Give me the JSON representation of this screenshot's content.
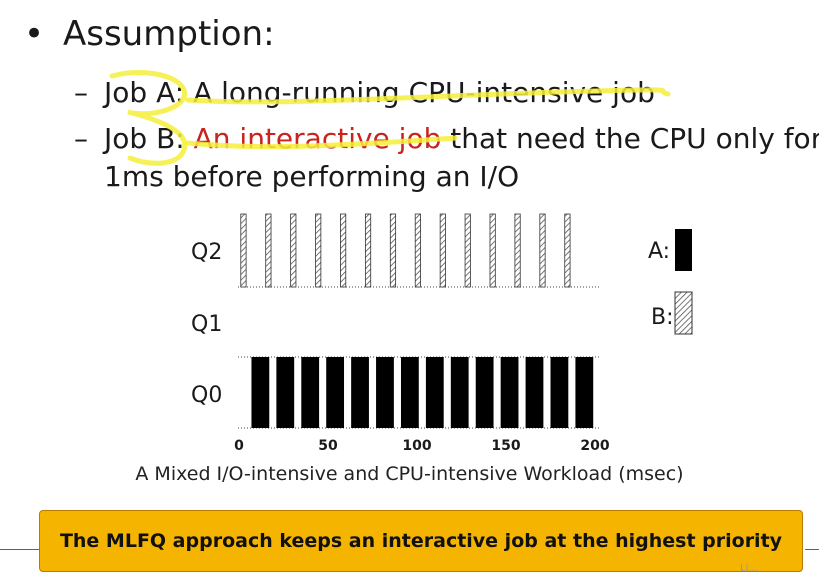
{
  "slide": {
    "heading": "Assumption:",
    "bullets": [
      {
        "dash": "–",
        "label": "Job A:",
        "text": " A long-running CPU-intensive job"
      },
      {
        "dash": "–",
        "label": "Job B:",
        "highlight": " An interactive job",
        "text": " that need the CPU only for",
        "line2": "1ms before performing an I/O"
      }
    ]
  },
  "diagram": {
    "queues": [
      "Q2",
      "Q1",
      "Q0"
    ],
    "legend": [
      {
        "label": "A:",
        "style": "solid",
        "color": "#000000"
      },
      {
        "label": "B:",
        "style": "hatched",
        "color": "#555555"
      }
    ],
    "x_ticks": [
      "0",
      "50",
      "100",
      "150",
      "200"
    ],
    "caption": "A Mixed I/O-intensive and CPU-intensive Workload (msec)",
    "jobA_color": "#000000",
    "jobB_hatch_color": "#555555"
  },
  "chart_data": {
    "type": "bar",
    "xlabel": "A Mixed I/O-intensive and CPU-intensive Workload (msec)",
    "xlim": [
      0,
      200
    ],
    "x_ticks": [
      0,
      50,
      100,
      150,
      200
    ],
    "rows": [
      "Q2",
      "Q1",
      "Q0"
    ],
    "series": [
      {
        "name": "A",
        "queue": "Q0",
        "segments": [
          [
            7,
            17
          ],
          [
            21,
            31
          ],
          [
            35,
            45
          ],
          [
            49,
            59
          ],
          [
            63,
            73
          ],
          [
            77,
            87
          ],
          [
            91,
            101
          ],
          [
            105,
            115
          ],
          [
            119,
            129
          ],
          [
            133,
            143
          ],
          [
            147,
            157
          ],
          [
            161,
            171
          ],
          [
            175,
            185
          ],
          [
            189,
            199
          ]
        ]
      },
      {
        "name": "B",
        "queue": "Q2",
        "segments": [
          [
            1,
            4
          ],
          [
            15,
            18
          ],
          [
            29,
            32
          ],
          [
            43,
            46
          ],
          [
            57,
            60
          ],
          [
            71,
            74
          ],
          [
            85,
            88
          ],
          [
            99,
            102
          ],
          [
            113,
            116
          ],
          [
            127,
            130
          ],
          [
            141,
            144
          ],
          [
            155,
            158
          ],
          [
            169,
            172
          ],
          [
            183,
            186
          ]
        ]
      }
    ]
  },
  "banner": {
    "text": "The MLFQ approach keeps an interactive job at the highest priority"
  },
  "footer": {
    "corner_text": "Li..."
  }
}
